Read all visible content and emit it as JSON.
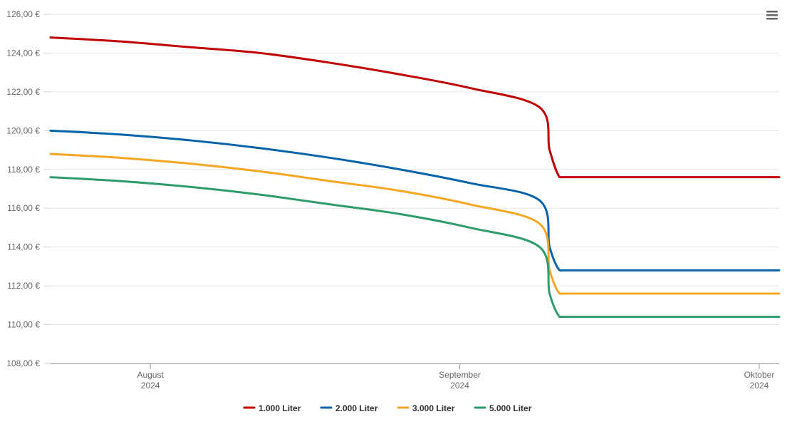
{
  "chart_data": {
    "type": "line",
    "title": "",
    "xlabel": "",
    "ylabel": "",
    "ylim": [
      108,
      126
    ],
    "y_ticks": [
      "108,00 €",
      "110,00 €",
      "112,00 €",
      "114,00 €",
      "116,00 €",
      "118,00 €",
      "120,00 €",
      "122,00 €",
      "124,00 €",
      "126,00 €"
    ],
    "x_range": [
      "2024-07-22",
      "2024-10-03"
    ],
    "x_ticks": [
      {
        "date": "2024-08-01",
        "label": "August",
        "year": "2024"
      },
      {
        "date": "2024-09-01",
        "label": "September",
        "year": "2024"
      },
      {
        "date": "2024-10-01",
        "label": "Oktober",
        "year": "2024"
      }
    ],
    "x": [
      "2024-07-22",
      "2024-07-29",
      "2024-08-05",
      "2024-08-12",
      "2024-08-19",
      "2024-08-26",
      "2024-09-02",
      "2024-09-09",
      "2024-09-10",
      "2024-09-11",
      "2024-09-12",
      "2024-09-19",
      "2024-09-26",
      "2024-10-03"
    ],
    "series": [
      {
        "name": "1.000 Liter",
        "color": "#c00000",
        "values": [
          124.8,
          124.6,
          124.3,
          124.0,
          123.5,
          122.9,
          122.2,
          121.2,
          119.0,
          117.6,
          117.6,
          117.6,
          117.6,
          117.6
        ]
      },
      {
        "name": "2.000 Liter",
        "color": "#0563a9",
        "values": [
          120.0,
          119.8,
          119.5,
          119.1,
          118.6,
          118.0,
          117.3,
          116.4,
          114.0,
          112.8,
          112.8,
          112.8,
          112.8,
          112.8
        ]
      },
      {
        "name": "3.000 Liter",
        "color": "#f5a623",
        "values": [
          118.8,
          118.6,
          118.3,
          117.9,
          117.4,
          116.9,
          116.2,
          115.2,
          112.8,
          111.6,
          111.6,
          111.6,
          111.6,
          111.6
        ]
      },
      {
        "name": "5.000 Liter",
        "color": "#2e9c68",
        "values": [
          117.6,
          117.4,
          117.1,
          116.7,
          116.2,
          115.7,
          115.0,
          114.0,
          111.6,
          110.4,
          110.4,
          110.4,
          110.4,
          110.4
        ]
      }
    ],
    "legend_position": "bottom-center",
    "grid": true
  },
  "menu": {
    "icon": "hamburger-menu-icon"
  }
}
